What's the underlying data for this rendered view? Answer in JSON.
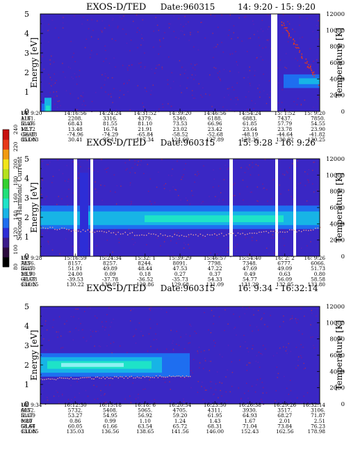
{
  "colorbar": {
    "label": "Second Harmonic Current",
    "ticks": [
      "240",
      "220",
      "200",
      "180",
      "160",
      "140",
      "120",
      "100",
      "80"
    ],
    "colors": [
      "#000000",
      "#2b0a3d",
      "#3a1a8a",
      "#2d2dd6",
      "#1e6ef0",
      "#17b4e6",
      "#1ee3c8",
      "#22e07a",
      "#33d12f",
      "#b6e11f",
      "#f2e51a",
      "#f29b12",
      "#e8391a",
      "#c81010"
    ]
  },
  "chart_data": [
    {
      "type": "heatmap",
      "title": "EXOS-D/TED",
      "date_label": "Date:960315",
      "time_range": "14: 9:20 - 15: 9:20",
      "ylabel": "Energy [eV]",
      "y2label": "Temperature [K]",
      "ylim": [
        0,
        5
      ],
      "y_ticks": [
        "0",
        "1",
        "2",
        "3",
        "4",
        "5"
      ],
      "y2lim": [
        0,
        12000
      ],
      "y2_ticks": [
        "0",
        "2000",
        "4000",
        "6000",
        "8000",
        "10000",
        "12000"
      ],
      "orbit_row_labels": [
        "UT",
        "ALT",
        "ILAT",
        "MLT",
        "GLAT",
        "GLON"
      ],
      "orbit_columns": [
        [
          "14: 9:20",
          "1161.",
          "51.06",
          "12.72",
          "-54.18",
          "353.03"
        ],
        [
          "14:16:56",
          "2208.",
          "68.43",
          "13.48",
          "-74.96",
          "30.41"
        ],
        [
          "14:24:24",
          "3316.",
          "81.55",
          "16.74",
          "-74.29",
          "95.11"
        ],
        [
          "14:31:52",
          "4379.",
          "81.10",
          "21.91",
          "-65.84",
          "117.34"
        ],
        [
          "14:39:20",
          "5340.",
          "73.53",
          "23.02",
          "-58.52",
          "124.69"
        ],
        [
          "14:46:56",
          "6188.",
          "66.96",
          "23.42",
          "-52.68",
          "127.89"
        ],
        [
          "14:54:24",
          "6883.",
          "61.85",
          "23.64",
          "-48.19",
          "129.36"
        ],
        [
          "15: 1:52",
          "7437.",
          "57.79",
          "23.78",
          "-44.64",
          "130.02"
        ],
        [
          "15: 9:20",
          "7850.",
          "54.55",
          "23.90",
          "-41.82",
          "130.25"
        ]
      ]
    },
    {
      "type": "heatmap",
      "title": "EXOS-D/TED",
      "date_label": "Date:960315",
      "time_range": "15: 9:28 - 16: 9:26",
      "ylabel": "Energy [eV]",
      "y2label": "Temperature [K]",
      "ylim": [
        0,
        5
      ],
      "y_ticks": [
        "0",
        "1",
        "2",
        "3",
        "4",
        "5"
      ],
      "y2lim": [
        0,
        12000
      ],
      "y2_ticks": [
        "0",
        "2000",
        "4000",
        "6000",
        "8000",
        "10000",
        "12000"
      ],
      "orbit_row_labels": [
        "UT",
        "ALT",
        "ILAT",
        "MLT",
        "GLAT",
        "GLON"
      ],
      "orbit_columns": [
        [
          "15: 9:28",
          "7856.",
          "54.50",
          "23.90",
          "-41.78",
          "130.25"
        ],
        [
          "15:16:59",
          "8157.",
          "51.91",
          "24.00",
          "-39.53",
          "130.22"
        ],
        [
          "15:24:34",
          "8257.",
          "49.89",
          "0.09",
          "-37.78",
          "130.07"
        ],
        [
          "15:32: 1",
          "8244.",
          "48.44",
          "0.18",
          "-36.52",
          "129.86"
        ],
        [
          "15:39:29",
          "8091.",
          "47.53",
          "0.27",
          "-35.73",
          "129.68"
        ],
        [
          "15:46:57",
          "7798.",
          "47.22",
          "0.37",
          "54.33",
          "131.09"
        ],
        [
          "15:54:40",
          "7348.",
          "47.69",
          "0.49",
          "54.77",
          "131.29"
        ],
        [
          "16: 2: 2",
          "6777.",
          "49.09",
          "0.63",
          "56.09",
          "132.05"
        ],
        [
          "16: 9:26",
          "6066.",
          "51.73",
          "0.80",
          "58.58",
          "133.80"
        ]
      ]
    },
    {
      "type": "heatmap",
      "title": "EXOS-D/TED",
      "date_label": "Date:960315",
      "time_range": "16: 9:34 - 16:32:14",
      "ylabel": "Energy [eV]",
      "y2label": "Temperature [K]",
      "ylim": [
        0,
        5
      ],
      "y_ticks": [
        "0",
        "1",
        "2",
        "3",
        "4",
        "5"
      ],
      "y2lim": [
        0,
        12000
      ],
      "y2_ticks": [
        "0",
        "2000",
        "4000",
        "6000",
        "8000",
        "10000",
        "12000"
      ],
      "orbit_row_labels": [
        "UT",
        "ALT",
        "ILAT",
        "MLT",
        "GLAT",
        "GLON"
      ],
      "orbit_columns": [
        [
          "16: 9:34",
          "6052.",
          "51.79",
          "0.80",
          "58.64",
          "133.85"
        ],
        [
          "16:12:30",
          "5732.",
          "53.27",
          "0.86",
          "60.05",
          "135.03"
        ],
        [
          "16:15:18",
          "5408.",
          "54.95",
          "0.99",
          "61.66",
          "136.56"
        ],
        [
          "16:18: 6",
          "5065.",
          "56.92",
          "1.10",
          "63.54",
          "138.65"
        ],
        [
          "16:20:54",
          "4705.",
          "59.20",
          "1.24",
          "65.72",
          "141.56"
        ],
        [
          "16:23:50",
          "4311.",
          "61.95",
          "1.43",
          "68.31",
          "146.00"
        ],
        [
          "16:26:38",
          "3930.",
          "64.93",
          "1.67",
          "71.04",
          "152.43"
        ],
        [
          "16:29:26",
          "3517.",
          "68.27",
          "2.01",
          "73.84",
          "162.56"
        ],
        [
          "16:32:14",
          "3106.",
          "71.87",
          "2.51",
          "76.23",
          "178.98"
        ]
      ]
    }
  ]
}
